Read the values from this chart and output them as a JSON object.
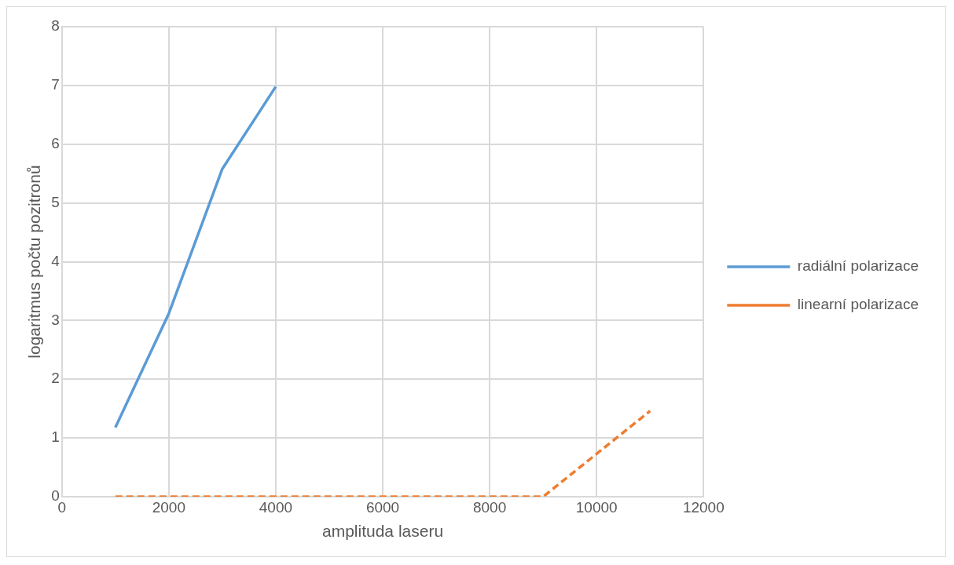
{
  "chart_data": {
    "type": "line",
    "xlabel": "amplituda laseru",
    "ylabel": "logaritmus počtu pozitronů",
    "xlim": [
      0,
      12000
    ],
    "xticks": [
      0,
      2000,
      4000,
      6000,
      8000,
      10000,
      12000
    ],
    "ylim": [
      0,
      8
    ],
    "yticks": [
      0,
      1,
      2,
      3,
      4,
      5,
      6,
      7,
      8
    ],
    "grid": true,
    "legend": "right",
    "marker": "none",
    "series": [
      {
        "name": "radiální polarizace",
        "color": "#5b9bd5",
        "line_style": "solid",
        "x": [
          1000,
          2000,
          3000,
          4000
        ],
        "values": [
          1.18,
          3.12,
          5.58,
          6.98
        ]
      },
      {
        "name": "linearní polarizace",
        "color": "#ed7d31",
        "line_style": "dashed",
        "x": [
          1000,
          2000,
          3000,
          4000,
          5000,
          6000,
          7000,
          8000,
          9000,
          10000,
          11000
        ],
        "values": [
          0,
          0,
          0,
          0,
          0,
          0,
          0,
          0,
          0,
          0.73,
          1.46
        ]
      }
    ]
  }
}
